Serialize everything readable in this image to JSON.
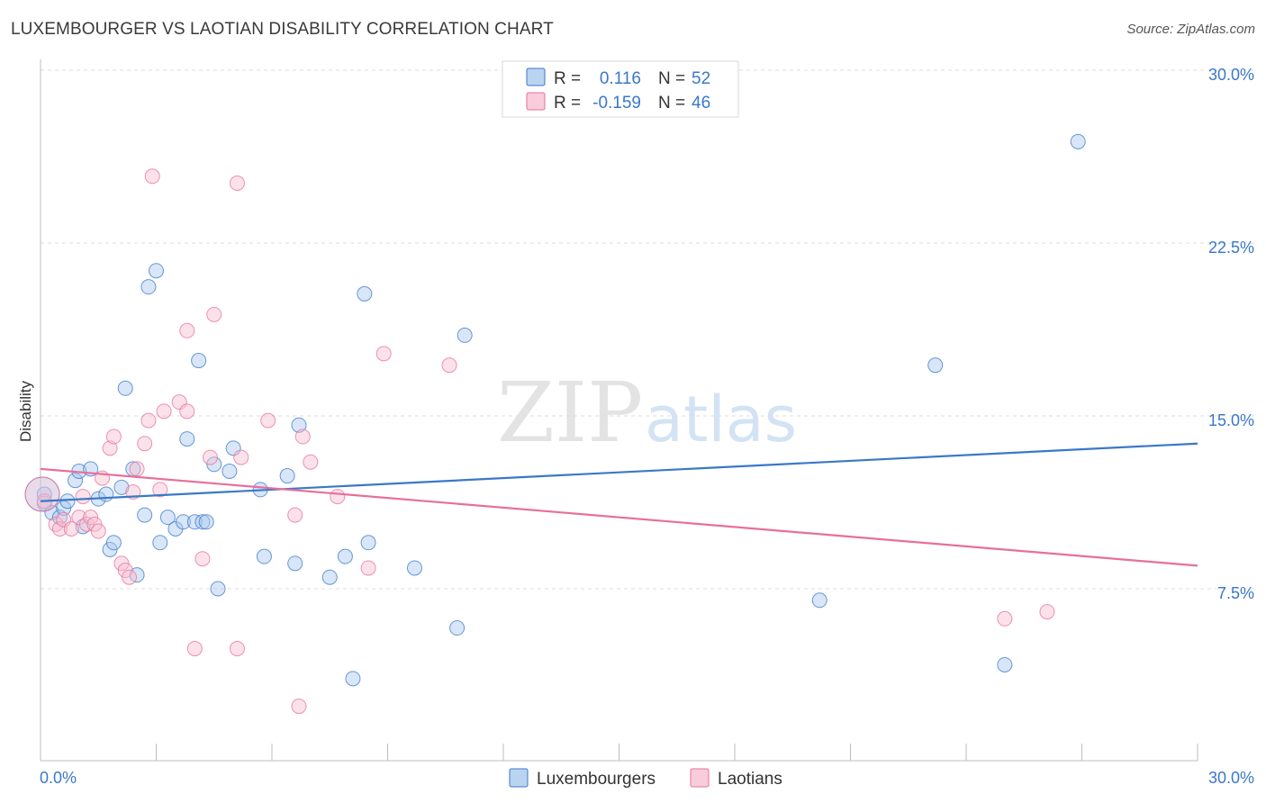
{
  "title": "LUXEMBOURGER VS LAOTIAN DISABILITY CORRELATION CHART",
  "source": "Source: ZipAtlas.com",
  "watermark": {
    "zip": "ZIP",
    "atlas": "atlas"
  },
  "chart_data": {
    "type": "scatter",
    "ylabel": "Disability",
    "xlim": [
      0,
      30
    ],
    "ylim": [
      0,
      31
    ],
    "x_tick_labels": [
      {
        "value": 0,
        "label": "0.0%"
      },
      {
        "value": 30,
        "label": "30.0%"
      }
    ],
    "y_tick_labels": [
      {
        "value": 7.5,
        "label": "7.5%"
      },
      {
        "value": 15,
        "label": "15.0%"
      },
      {
        "value": 22.5,
        "label": "22.5%"
      },
      {
        "value": 30,
        "label": "30.0%"
      }
    ],
    "grid": "horizontal dashed",
    "legend_stats": [
      {
        "r_label": "R =",
        "r_value": "0.116",
        "n_label": "N =",
        "n_value": "52"
      },
      {
        "r_label": "R =",
        "r_value": "-0.159",
        "n_label": "N =",
        "n_value": "46"
      }
    ],
    "series": [
      {
        "name": "Luxembourgers",
        "color": "#3a78c9",
        "fill": "#a9c8ee",
        "trend": [
          [
            0,
            11.3
          ],
          [
            30,
            13.8
          ]
        ],
        "points": [
          [
            0.1,
            11.6
          ],
          [
            0.1,
            11.2
          ],
          [
            0.3,
            10.8
          ],
          [
            0.5,
            10.6
          ],
          [
            0.6,
            11.0
          ],
          [
            0.7,
            11.3
          ],
          [
            0.9,
            12.2
          ],
          [
            1.0,
            12.6
          ],
          [
            1.1,
            10.2
          ],
          [
            1.3,
            12.7
          ],
          [
            1.5,
            11.4
          ],
          [
            1.7,
            11.6
          ],
          [
            1.8,
            9.2
          ],
          [
            1.9,
            9.5
          ],
          [
            2.1,
            11.9
          ],
          [
            2.2,
            16.2
          ],
          [
            2.4,
            12.7
          ],
          [
            2.5,
            8.1
          ],
          [
            2.7,
            10.7
          ],
          [
            2.8,
            20.6
          ],
          [
            3.1,
            9.5
          ],
          [
            3.0,
            21.3
          ],
          [
            3.3,
            10.6
          ],
          [
            3.5,
            10.1
          ],
          [
            3.7,
            10.4
          ],
          [
            3.8,
            14.0
          ],
          [
            4.0,
            10.4
          ],
          [
            4.2,
            10.4
          ],
          [
            4.1,
            17.4
          ],
          [
            4.3,
            10.4
          ],
          [
            4.5,
            12.9
          ],
          [
            4.6,
            7.5
          ],
          [
            4.9,
            12.6
          ],
          [
            5.0,
            13.6
          ],
          [
            5.7,
            11.8
          ],
          [
            5.8,
            8.9
          ],
          [
            6.4,
            12.4
          ],
          [
            6.6,
            8.6
          ],
          [
            6.7,
            14.6
          ],
          [
            7.5,
            8.0
          ],
          [
            7.9,
            8.9
          ],
          [
            8.1,
            3.6
          ],
          [
            8.5,
            9.5
          ],
          [
            8.4,
            20.3
          ],
          [
            9.7,
            8.4
          ],
          [
            10.8,
            5.8
          ],
          [
            11.0,
            18.5
          ],
          [
            20.2,
            7.0
          ],
          [
            23.2,
            17.2
          ],
          [
            25.0,
            4.2
          ],
          [
            26.9,
            26.9
          ],
          [
            0.05,
            11.6
          ]
        ]
      },
      {
        "name": "Laotians",
        "color": "#e76f9a",
        "fill": "#f6bfd1",
        "trend": [
          [
            0,
            12.7
          ],
          [
            30,
            8.5
          ]
        ],
        "points": [
          [
            0.1,
            11.3
          ],
          [
            0.4,
            10.3
          ],
          [
            0.5,
            10.1
          ],
          [
            0.6,
            10.5
          ],
          [
            0.8,
            10.1
          ],
          [
            1.0,
            10.6
          ],
          [
            1.1,
            11.5
          ],
          [
            1.2,
            10.3
          ],
          [
            1.3,
            10.6
          ],
          [
            1.4,
            10.3
          ],
          [
            1.5,
            10.0
          ],
          [
            1.6,
            12.3
          ],
          [
            1.8,
            13.6
          ],
          [
            1.9,
            14.1
          ],
          [
            2.1,
            8.6
          ],
          [
            2.2,
            8.3
          ],
          [
            2.3,
            8.0
          ],
          [
            2.4,
            11.7
          ],
          [
            2.5,
            12.7
          ],
          [
            2.7,
            13.8
          ],
          [
            2.8,
            14.8
          ],
          [
            2.9,
            25.4
          ],
          [
            3.1,
            11.8
          ],
          [
            3.2,
            15.2
          ],
          [
            3.6,
            15.6
          ],
          [
            3.8,
            15.2
          ],
          [
            3.8,
            18.7
          ],
          [
            4.0,
            4.9
          ],
          [
            4.2,
            8.8
          ],
          [
            4.4,
            13.2
          ],
          [
            4.5,
            19.4
          ],
          [
            5.1,
            4.9
          ],
          [
            5.1,
            25.1
          ],
          [
            5.2,
            13.2
          ],
          [
            5.9,
            14.8
          ],
          [
            6.6,
            10.7
          ],
          [
            6.7,
            2.4
          ],
          [
            6.8,
            14.1
          ],
          [
            7.0,
            13.0
          ],
          [
            7.7,
            11.5
          ],
          [
            8.5,
            8.4
          ],
          [
            8.9,
            17.7
          ],
          [
            10.6,
            17.2
          ],
          [
            25.0,
            6.2
          ],
          [
            26.1,
            6.5
          ],
          [
            0.05,
            11.6
          ]
        ]
      }
    ]
  }
}
